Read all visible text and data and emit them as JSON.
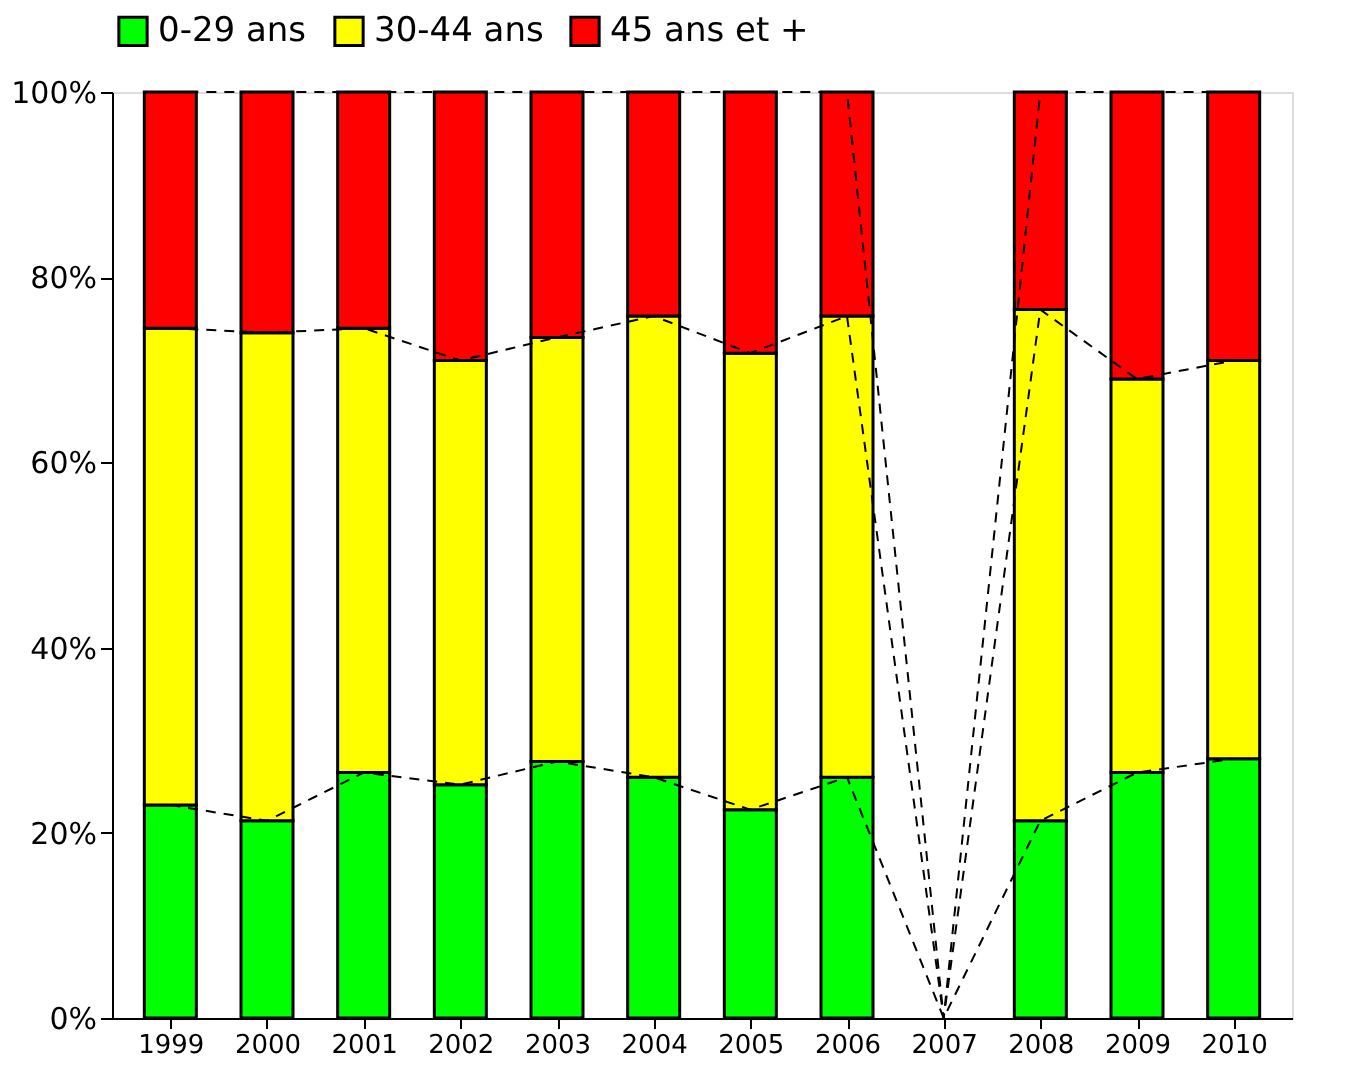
{
  "chart_data": {
    "type": "bar",
    "stacked": true,
    "legend": "top",
    "grid": false,
    "categories": [
      "1999",
      "2000",
      "2001",
      "2002",
      "2003",
      "2004",
      "2005",
      "2006",
      "2007",
      "2008",
      "2009",
      "2010"
    ],
    "series": [
      {
        "name": "0-29 ans",
        "color": "#00ff00",
        "values": [
          23,
          21.3,
          26.5,
          25.2,
          27.7,
          26,
          22.5,
          26,
          0,
          21.3,
          26.5,
          28
        ]
      },
      {
        "name": "30-44 ans",
        "color": "#ffff00",
        "values": [
          51.5,
          52.7,
          48,
          45.8,
          45.8,
          49.8,
          49.3,
          49.8,
          0,
          55.2,
          42.5,
          43
        ]
      },
      {
        "name": "45 ans et +",
        "color": "#ff0000",
        "values": [
          25.5,
          26,
          25.5,
          29,
          26.5,
          24.2,
          28.2,
          24.2,
          0,
          23.5,
          31,
          29
        ]
      }
    ],
    "ylim": [
      0,
      100
    ],
    "yticks": [
      {
        "value": 0,
        "label": "0%"
      },
      {
        "value": 20,
        "label": "20%"
      },
      {
        "value": 40,
        "label": "40%"
      },
      {
        "value": 60,
        "label": "60%"
      },
      {
        "value": 80,
        "label": "80%"
      },
      {
        "value": 100,
        "label": "100%"
      }
    ]
  }
}
